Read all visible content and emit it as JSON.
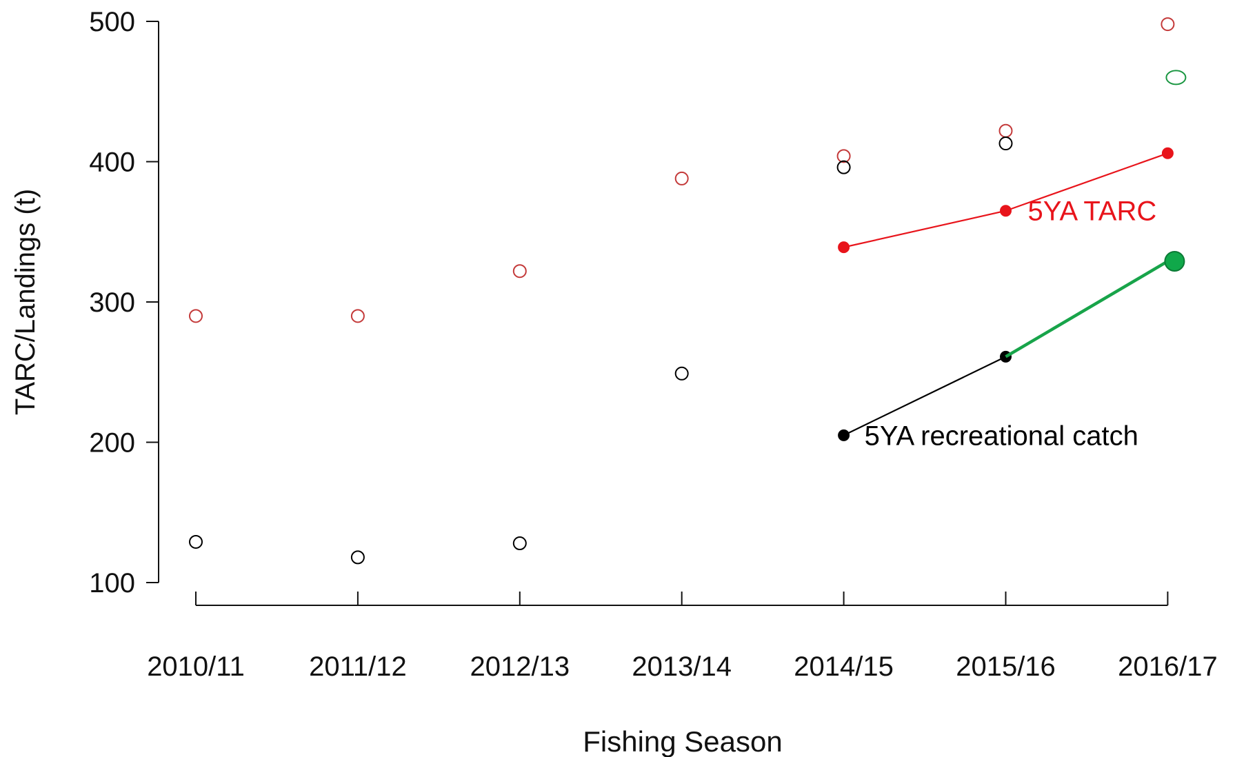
{
  "chart_data": {
    "type": "scatter",
    "title": "",
    "xlabel": "Fishing Season",
    "ylabel": "TARC/Landings (t)",
    "categories": [
      "2010/11",
      "2011/12",
      "2012/13",
      "2013/14",
      "2014/15",
      "2015/16",
      "2016/17"
    ],
    "ylim": [
      100,
      500
    ],
    "yticks": [
      100,
      200,
      300,
      400,
      500
    ],
    "grid": false,
    "series": [
      {
        "kind": "points",
        "style": "open",
        "color": "#c43a3a",
        "values": [
          290,
          290,
          322,
          388,
          404,
          422,
          498
        ]
      },
      {
        "kind": "points",
        "style": "open",
        "color": "#000000",
        "values": [
          129,
          118,
          128,
          249,
          396,
          413,
          null
        ]
      },
      {
        "kind": "points",
        "style": "open",
        "color": "#1a9641",
        "points": [
          {
            "x": "2016/17",
            "y": 460
          }
        ]
      },
      {
        "name": "5YA TARC",
        "kind": "line",
        "style": "filled",
        "color": "#e8141b",
        "points": [
          {
            "x": "2014/15",
            "y": 339
          },
          {
            "x": "2015/16",
            "y": 365
          },
          {
            "x": "2016/17",
            "y": 406
          }
        ]
      },
      {
        "name": "5YA recreational catch",
        "kind": "line",
        "style": "filled",
        "color": "#000000",
        "points": [
          {
            "x": "2014/15",
            "y": 205
          },
          {
            "x": "2015/16",
            "y": 261
          }
        ]
      },
      {
        "kind": "line",
        "style": "filled-end",
        "color": "#18a44a",
        "points": [
          {
            "x": "2015/16",
            "y": 261
          },
          {
            "x": "2016/17",
            "y": 329
          }
        ]
      }
    ],
    "annotations": [
      {
        "text": "5YA TARC",
        "x": "2015/16",
        "y": 365,
        "color": "#e8141b"
      },
      {
        "text": "5YA recreational catch",
        "x": "2014/15",
        "y": 205,
        "color": "#000000"
      }
    ]
  }
}
